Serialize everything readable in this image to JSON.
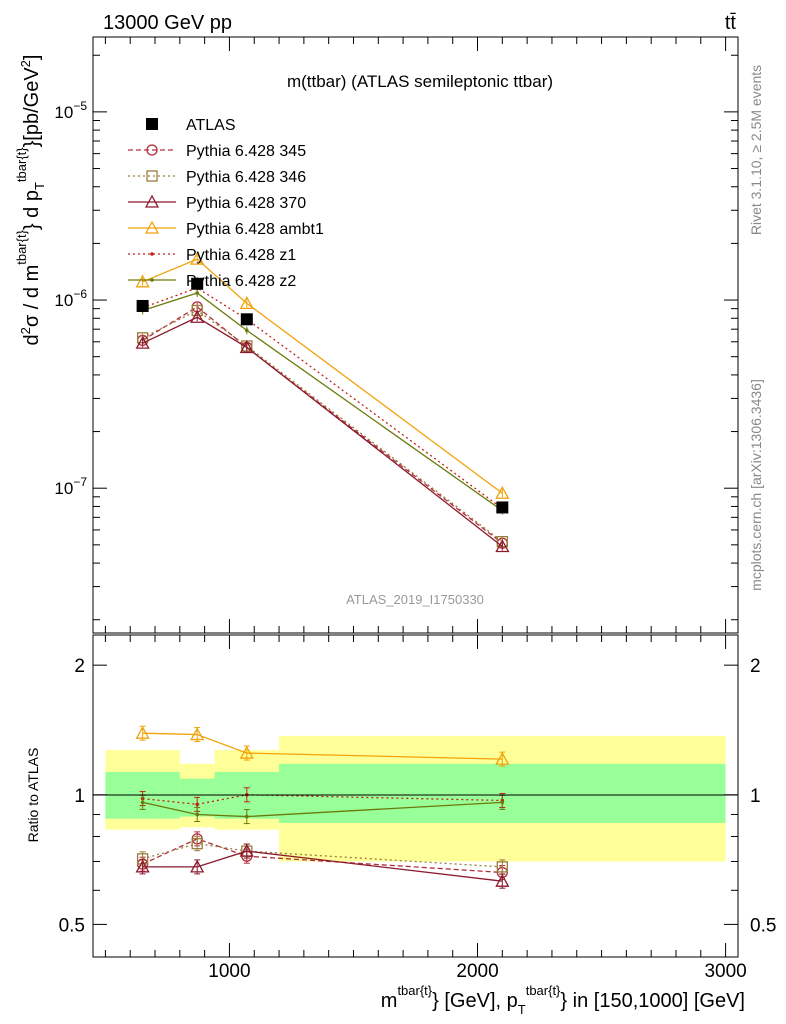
{
  "header": {
    "left": "13000 GeV pp",
    "right": "tt̄",
    "title": "m(ttbar) (ATLAS semileptonic ttbar)",
    "analysis_id": "ATLAS_2019_I1750330",
    "side_rivet": "Rivet 3.1.10, ≥ 2.5M events",
    "side_mcplots": "mcplots.cern.ch [arXiv:1306.3436]"
  },
  "axis_text": {
    "ylabel_main": "d²σ / d m^{tbar{t}} d p_T^{tbar{t}} [pb/GeV²]",
    "ylabel_ratio": "Ratio to ATLAS",
    "xlabel": "m^{tbar{t}} [GeV], p_T^{tbar{t}} in [150,1000] [GeV]"
  },
  "chart_data": [
    {
      "type": "line",
      "panel": "main",
      "yscale": "log",
      "xlim": [
        450,
        3050
      ],
      "ylim": [
        1.7e-08,
        2.5e-05
      ],
      "x_ticks": [
        "1000",
        "2000",
        "3000"
      ],
      "y_ticks": [
        "10^-7",
        "10^-6",
        "10^-5"
      ],
      "x": [
        650,
        870,
        1070,
        2100
      ],
      "data": {
        "name": "ATLAS",
        "values": [
          9.3e-07,
          1.22e-06,
          7.9e-07,
          7.9e-08
        ]
      },
      "series": [
        {
          "name": "Pythia 6.428 345",
          "color": "#b22d3c",
          "linestyle": "dashed",
          "marker": "circle",
          "values": [
            6.1e-07,
            9.2e-07,
            5.6e-07,
            5.1e-08
          ]
        },
        {
          "name": "Pythia 6.428 346",
          "color": "#9a7d3a",
          "linestyle": "dotted",
          "marker": "square",
          "values": [
            6.3e-07,
            8.8e-07,
            5.7e-07,
            5.2e-08
          ]
        },
        {
          "name": "Pythia 6.428 370",
          "color": "#8b1a2e",
          "linestyle": "solid",
          "marker": "triangle",
          "values": [
            5.9e-07,
            8.1e-07,
            5.6e-07,
            4.9e-08
          ]
        },
        {
          "name": "Pythia 6.428 ambt1",
          "color": "#f0a30a",
          "linestyle": "solid",
          "marker": "triangle",
          "values": [
            1.25e-06,
            1.65e-06,
            9.6e-07,
            9.4e-08
          ]
        },
        {
          "name": "Pythia 6.428 z1",
          "color": "#c0221a",
          "linestyle": "dotted",
          "marker": "dot",
          "values": [
            9.1e-07,
            1.16e-06,
            7.9e-07,
            7.8e-08
          ]
        },
        {
          "name": "Pythia 6.428 z2",
          "color": "#6b7a0a",
          "linestyle": "solid",
          "marker": "dot",
          "values": [
            8.8e-07,
            1.09e-06,
            6.9e-07,
            7.6e-08
          ]
        }
      ]
    },
    {
      "type": "line",
      "panel": "ratio",
      "yscale": "log",
      "xlim": [
        450,
        3050
      ],
      "ylim": [
        0.42,
        2.35
      ],
      "y_ticks": [
        "0.5",
        "1",
        "2"
      ],
      "bins": [
        {
          "xlo": 500,
          "xhi": 800,
          "inner": [
            0.88,
            1.13
          ],
          "outer": [
            0.83,
            1.27
          ]
        },
        {
          "xlo": 800,
          "xhi": 940,
          "inner": [
            0.89,
            1.09
          ],
          "outer": [
            0.84,
            1.18
          ]
        },
        {
          "xlo": 940,
          "xhi": 1200,
          "inner": [
            0.88,
            1.13
          ],
          "outer": [
            0.83,
            1.27
          ]
        },
        {
          "xlo": 1200,
          "xhi": 3000,
          "inner": [
            0.86,
            1.18
          ],
          "outer": [
            0.7,
            1.37
          ]
        }
      ],
      "x": [
        650,
        870,
        1070,
        2100
      ],
      "series": [
        {
          "name": "Pythia 6.428 345",
          "values": [
            0.69,
            0.79,
            0.72,
            0.66
          ]
        },
        {
          "name": "Pythia 6.428 346",
          "values": [
            0.71,
            0.77,
            0.74,
            0.68
          ]
        },
        {
          "name": "Pythia 6.428 370",
          "values": [
            0.68,
            0.68,
            0.74,
            0.63
          ]
        },
        {
          "name": "Pythia 6.428 ambt1",
          "values": [
            1.39,
            1.38,
            1.25,
            1.21
          ]
        },
        {
          "name": "Pythia 6.428 z1",
          "values": [
            0.98,
            0.95,
            1.0,
            0.97
          ]
        },
        {
          "name": "Pythia 6.428 z2",
          "values": [
            0.96,
            0.9,
            0.89,
            0.96
          ]
        }
      ]
    }
  ]
}
